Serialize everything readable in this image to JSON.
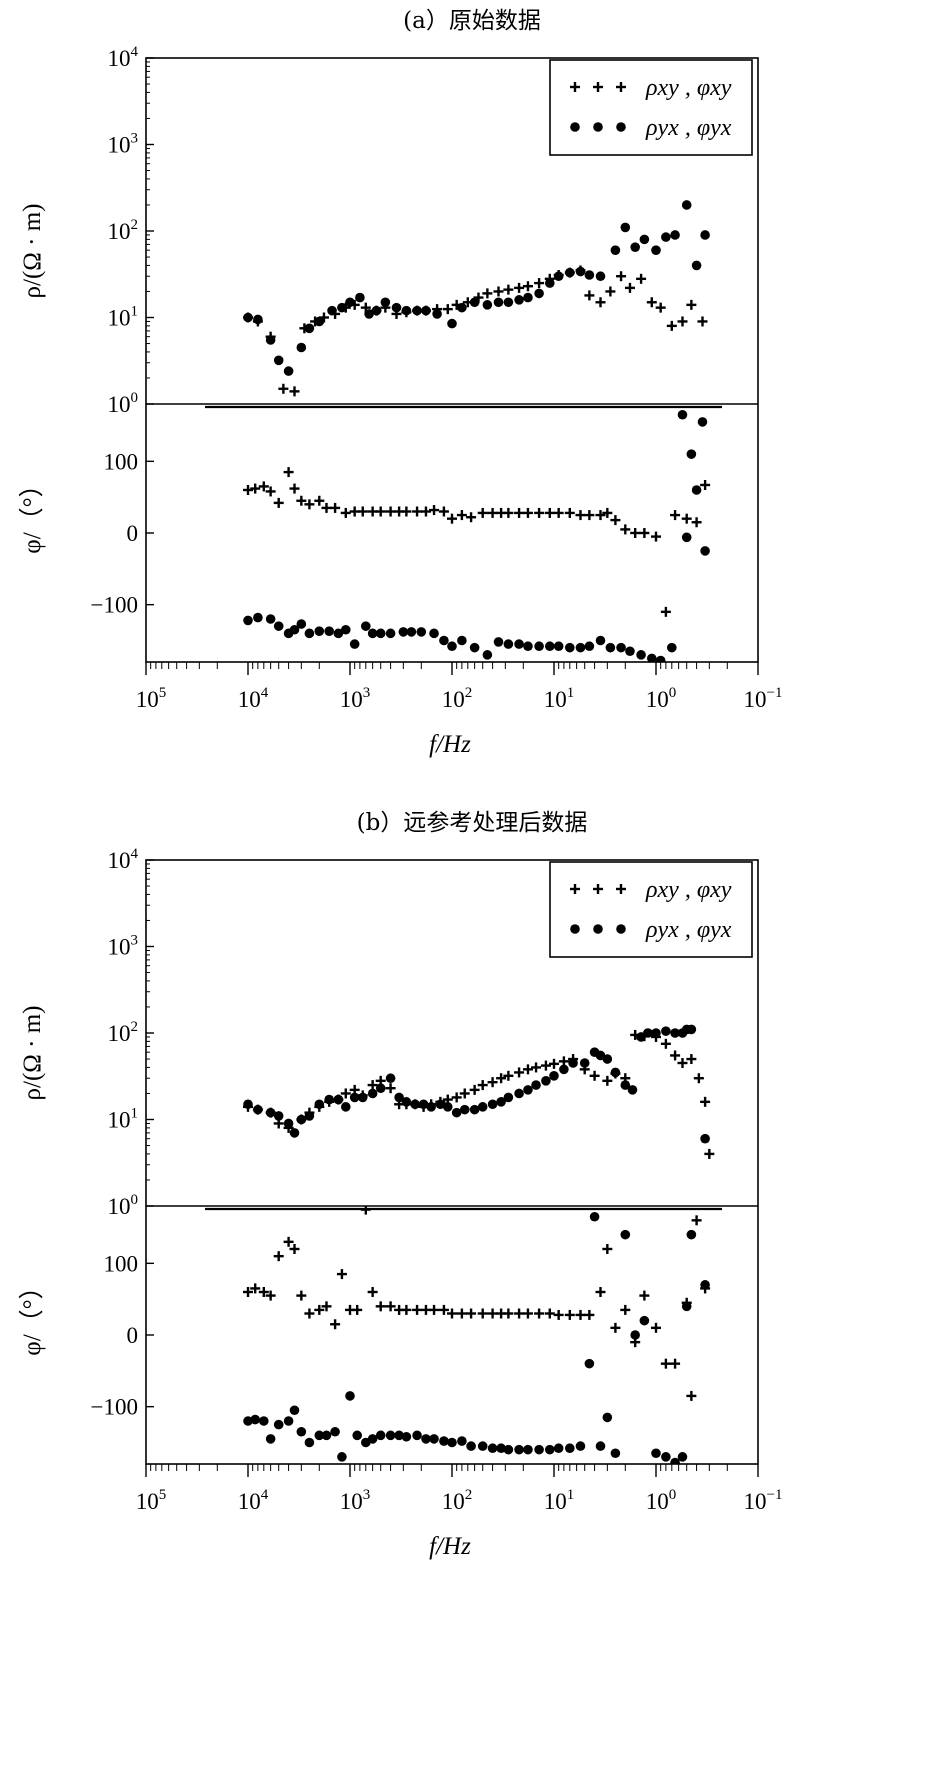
{
  "chart_data": [
    {
      "panel": "a",
      "type": "scatter",
      "title": "(a）原始数据",
      "xlabel": "f/Hz",
      "x_scale": "log",
      "x_reversed": true,
      "xlim": [
        100000,
        0.1
      ],
      "x_tick_labels": [
        "10⁵",
        "10⁴",
        "10³",
        "10²",
        "10¹",
        "10⁰",
        "10⁻¹"
      ],
      "legend": {
        "position": "top-right",
        "entries": [
          "ρxy , φxy",
          "ρyx , φyx"
        ]
      },
      "rho": {
        "ylabel": "ρ/(Ω · m)",
        "y_scale": "log",
        "ylim": [
          1,
          10000
        ],
        "y_tick_labels": [
          "10⁰",
          "10¹",
          "10²",
          "10³",
          "10⁴"
        ],
        "series": [
          {
            "name": "ρxy",
            "marker": "plus",
            "x": [
              10000,
              8000,
              6000,
              4500,
              3500,
              2800,
              2200,
              1800,
              1400,
              1100,
              900,
              700,
              550,
              450,
              350,
              280,
              220,
              180,
              140,
              110,
              90,
              70,
              55,
              45,
              35,
              28,
              22,
              18,
              14,
              11,
              9,
              7,
              5.5,
              4.5,
              3.5,
              2.8,
              2.2,
              1.8,
              1.4,
              1.1,
              0.9,
              0.7,
              0.55,
              0.45,
              0.35
            ],
            "y": [
              10,
              9,
              6,
              1.5,
              1.4,
              7.5,
              9,
              10,
              11,
              13,
              14,
              13,
              12,
              13,
              11,
              11.5,
              12,
              12,
              12.5,
              12.5,
              14,
              15,
              17,
              19,
              20,
              21,
              22,
              23,
              25,
              28,
              31,
              33,
              35,
              18,
              15,
              20,
              30,
              22,
              28,
              15,
              13,
              8,
              9,
              14,
              9
            ]
          },
          {
            "name": "ρyx",
            "marker": "dot",
            "x": [
              10000,
              8000,
              6000,
              5000,
              4000,
              3000,
              2500,
              2000,
              1500,
              1200,
              1000,
              800,
              650,
              550,
              450,
              350,
              280,
              220,
              180,
              140,
              100,
              80,
              60,
              45,
              35,
              28,
              22,
              18,
              14,
              11,
              9,
              7,
              5.5,
              4.5,
              3.5,
              2.5,
              2,
              1.6,
              1.3,
              1,
              0.8,
              0.65,
              0.5,
              0.4,
              0.33
            ],
            "y": [
              10,
              9.5,
              5.5,
              3.2,
              2.4,
              4.5,
              7.5,
              9,
              12,
              13,
              15,
              17,
              11,
              12,
              15,
              13,
              12,
              12,
              12,
              11,
              8.5,
              13,
              15,
              14,
              15,
              15,
              16,
              17,
              19,
              25,
              30,
              33,
              34,
              31,
              30,
              60,
              110,
              65,
              80,
              60,
              85,
              90,
              200,
              40,
              90
            ]
          }
        ]
      },
      "phase": {
        "ylabel": "φ/（°）",
        "ylim": [
          -180,
          180
        ],
        "y_tick_labels": [
          "100",
          "0",
          "−100"
        ],
        "y_ticks": [
          100,
          0,
          -100
        ],
        "series": [
          {
            "name": "φxy",
            "marker": "plus",
            "x": [
              10000,
              8500,
              7000,
              6000,
              5000,
              4000,
              3500,
              3000,
              2500,
              2000,
              1700,
              1400,
              1100,
              900,
              750,
              600,
              500,
              400,
              330,
              280,
              220,
              180,
              150,
              120,
              100,
              80,
              65,
              50,
              40,
              33,
              28,
              22,
              18,
              14,
              11,
              9,
              7,
              5.5,
              4.5,
              3.5,
              3,
              2.5,
              2,
              1.6,
              1.3,
              1,
              0.8,
              0.65,
              0.5,
              0.4,
              0.33
            ],
            "y": [
              60,
              62,
              65,
              58,
              42,
              85,
              62,
              45,
              40,
              45,
              35,
              35,
              28,
              30,
              30,
              30,
              30,
              30,
              30,
              30,
              30,
              30,
              32,
              30,
              20,
              25,
              22,
              28,
              28,
              28,
              28,
              28,
              28,
              28,
              28,
              28,
              28,
              25,
              25,
              25,
              28,
              18,
              5,
              0,
              0,
              -5,
              -110,
              25,
              20,
              15,
              67
            ]
          },
          {
            "name": "φyx",
            "marker": "dot",
            "x": [
              10000,
              8000,
              6000,
              5000,
              4000,
              3500,
              3000,
              2500,
              2000,
              1600,
              1300,
              1100,
              900,
              700,
              600,
              500,
              400,
              300,
              250,
              200,
              150,
              120,
              100,
              80,
              60,
              45,
              35,
              28,
              22,
              18,
              14,
              11,
              9,
              7,
              5.5,
              4.5,
              3.5,
              2.8,
              2.2,
              1.8,
              1.4,
              1.1,
              0.9,
              0.7,
              0.55,
              0.5,
              0.45,
              0.4,
              0.35,
              0.33
            ],
            "y": [
              -122,
              -118,
              -120,
              -130,
              -140,
              -135,
              -127,
              -140,
              -137,
              -137,
              -140,
              -135,
              -155,
              -130,
              -140,
              -140,
              -140,
              -138,
              -138,
              -138,
              -140,
              -150,
              -158,
              -150,
              -160,
              -170,
              -152,
              -155,
              -155,
              -158,
              -158,
              -158,
              -158,
              -160,
              -160,
              -158,
              -150,
              -160,
              -160,
              -165,
              -170,
              -175,
              -178,
              -160,
              165,
              -6,
              110,
              60,
              155,
              -25
            ]
          }
        ]
      }
    },
    {
      "panel": "b",
      "type": "scatter",
      "title": "(b）远参考处理后数据",
      "xlabel": "f/Hz",
      "x_scale": "log",
      "x_reversed": true,
      "xlim": [
        100000,
        0.1
      ],
      "x_tick_labels": [
        "10⁵",
        "10⁴",
        "10³",
        "10²",
        "10¹",
        "10⁰",
        "10⁻¹"
      ],
      "legend": {
        "position": "top-right",
        "entries": [
          "ρxy , φxy",
          "ρyx , φyx"
        ]
      },
      "rho": {
        "ylabel": "ρ/(Ω · m)",
        "y_scale": "log",
        "ylim": [
          1,
          10000
        ],
        "y_tick_labels": [
          "10⁰",
          "10¹",
          "10²",
          "10³",
          "10⁴"
        ],
        "series": [
          {
            "name": "ρxy",
            "marker": "plus",
            "x": [
              10000,
              8000,
              6000,
              5000,
              4000,
              3000,
              2500,
              2000,
              1600,
              1300,
              1100,
              900,
              750,
              600,
              500,
              400,
              330,
              280,
              230,
              190,
              160,
              130,
              110,
              90,
              75,
              60,
              50,
              40,
              33,
              28,
              22,
              18,
              15,
              12,
              10,
              8,
              6.5,
              5,
              4,
              3,
              2.5,
              2,
              1.6,
              1.3,
              1,
              0.8,
              0.65,
              0.55,
              0.45,
              0.38,
              0.33,
              0.3
            ],
            "y": [
              14,
              13,
              12,
              9,
              8,
              10,
              12,
              14,
              16,
              17,
              20,
              22,
              19,
              25,
              28,
              23,
              15,
              15,
              15,
              14,
              15,
              16,
              17,
              18,
              20,
              22,
              25,
              27,
              30,
              32,
              35,
              38,
              40,
              42,
              44,
              47,
              50,
              38,
              32,
              28,
              34,
              30,
              95,
              92,
              90,
              75,
              55,
              45,
              50,
              30,
              16,
              4
            ]
          },
          {
            "name": "ρyx",
            "marker": "dot",
            "x": [
              10000,
              8000,
              6000,
              5000,
              4000,
              3500,
              3000,
              2500,
              2000,
              1600,
              1300,
              1100,
              900,
              750,
              600,
              500,
              400,
              330,
              280,
              230,
              190,
              160,
              130,
              110,
              90,
              75,
              60,
              50,
              40,
              33,
              28,
              22,
              18,
              15,
              12,
              10,
              8,
              6.5,
              5,
              4,
              3.5,
              3,
              2.5,
              2,
              1.7,
              1.4,
              1.2,
              1,
              0.8,
              0.65,
              0.55,
              0.5,
              0.45,
              0.33
            ],
            "y": [
              15,
              13,
              12,
              11,
              9,
              7,
              10,
              11,
              15,
              17,
              17,
              14,
              18,
              18,
              20,
              23,
              30,
              18,
              16,
              15,
              15,
              14,
              15,
              14,
              12,
              13,
              13,
              14,
              15,
              16,
              18,
              20,
              22,
              25,
              28,
              32,
              38,
              45,
              45,
              60,
              55,
              50,
              35,
              25,
              22,
              90,
              100,
              100,
              105,
              100,
              100,
              110,
              110,
              6
            ]
          }
        ]
      },
      "phase": {
        "ylabel": "φ/（°）",
        "ylim": [
          -180,
          180
        ],
        "y_tick_labels": [
          "100",
          "0",
          "−100"
        ],
        "y_ticks": [
          100,
          0,
          -100
        ],
        "series": [
          {
            "name": "φxy",
            "marker": "plus",
            "x": [
              10000,
              8500,
              7000,
              6000,
              5000,
              4000,
              3500,
              3000,
              2500,
              2000,
              1700,
              1400,
              1200,
              1000,
              850,
              700,
              600,
              500,
              400,
              330,
              280,
              220,
              180,
              150,
              120,
              100,
              80,
              65,
              50,
              40,
              33,
              28,
              22,
              18,
              14,
              11,
              9,
              7,
              5.5,
              4.5,
              3.5,
              3,
              2.5,
              2,
              1.6,
              1.3,
              1,
              0.8,
              0.65,
              0.5,
              0.45,
              0.4,
              0.33
            ],
            "y": [
              60,
              65,
              60,
              55,
              110,
              130,
              120,
              55,
              30,
              35,
              40,
              15,
              85,
              35,
              35,
              175,
              60,
              40,
              40,
              35,
              35,
              35,
              35,
              35,
              35,
              30,
              30,
              30,
              30,
              30,
              30,
              30,
              30,
              30,
              30,
              30,
              28,
              28,
              28,
              28,
              60,
              120,
              10,
              35,
              -10,
              55,
              10,
              -40,
              -40,
              45,
              -85,
              160,
              65
            ]
          },
          {
            "name": "φyx",
            "marker": "dot",
            "x": [
              10000,
              8500,
              7000,
              6000,
              5000,
              4000,
              3500,
              3000,
              2500,
              2000,
              1700,
              1400,
              1200,
              1000,
              850,
              700,
              600,
              500,
              400,
              330,
              280,
              220,
              180,
              150,
              120,
              100,
              80,
              65,
              50,
              40,
              33,
              28,
              22,
              18,
              14,
              11,
              9,
              7,
              5.5,
              4.5,
              4,
              3.5,
              3,
              2.5,
              2,
              1.6,
              1.3,
              1,
              0.8,
              0.65,
              0.55,
              0.5,
              0.45,
              0.33
            ],
            "y": [
              -120,
              -118,
              -120,
              -145,
              -125,
              -120,
              -105,
              -135,
              -150,
              -140,
              -140,
              -135,
              -170,
              -85,
              -140,
              -150,
              -145,
              -140,
              -140,
              -140,
              -142,
              -140,
              -145,
              -145,
              -148,
              -150,
              -148,
              -155,
              -155,
              -158,
              -158,
              -160,
              -160,
              -160,
              -160,
              -160,
              -158,
              -158,
              -155,
              -40,
              165,
              -155,
              -115,
              -165,
              140,
              0,
              20,
              -165,
              -170,
              -178,
              -170,
              40,
              140,
              70
            ]
          }
        ]
      }
    }
  ]
}
